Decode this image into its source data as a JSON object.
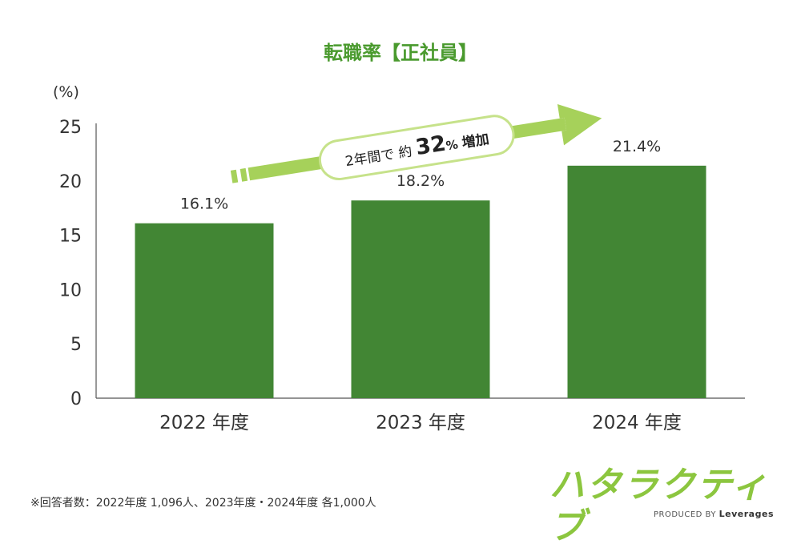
{
  "title": "転職率【正社員】",
  "unit_label": "(%)",
  "chart_data": {
    "type": "bar",
    "categories": [
      "2022 年度",
      "2023 年度",
      "2024 年度"
    ],
    "values": [
      16.1,
      18.2,
      21.4
    ],
    "value_labels": [
      "16.1%",
      "18.2%",
      "21.4%"
    ],
    "ylabel": "(%)",
    "ylim": [
      0,
      25
    ],
    "yticks": [
      0,
      5,
      10,
      15,
      20,
      25
    ],
    "grid": false,
    "annotation": {
      "prefix": "2年間で 約",
      "number": "32",
      "suffix_percent": "%",
      "suffix": "増加"
    }
  },
  "colors": {
    "bar": "#428634",
    "title": "#4a9a2e",
    "arrow": "#a6d15a",
    "arrow_border": "#c6e28a",
    "logo": "#8cc63f",
    "axis": "#555555"
  },
  "footnote": "※回答者数：2022年度 1,096人、2023年度・2024年度 各1,000人",
  "logo": {
    "name": "ハタラクティブ",
    "produced_by": "PRODUCED BY",
    "company": "Leverages"
  }
}
